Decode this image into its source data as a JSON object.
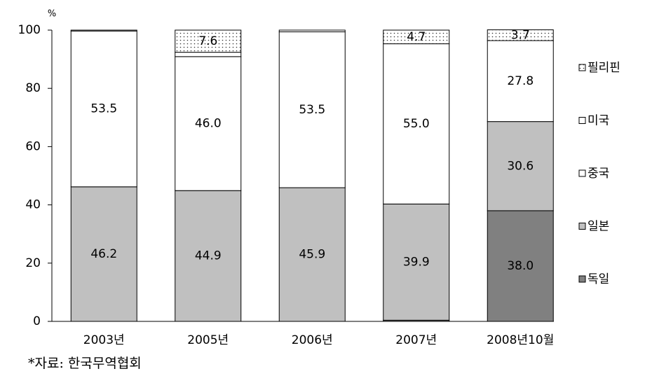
{
  "chart_data": {
    "type": "stacked_bar",
    "y_unit": "%",
    "source": "*자료: 한국무역협회",
    "categories": [
      "2003년",
      "2005년",
      "2006년",
      "2007년",
      "2008년10월"
    ],
    "series": [
      {
        "name": "독일",
        "color": "#808080",
        "values": [
          0,
          0,
          0,
          0.4,
          38.0
        ],
        "value_labels": [
          null,
          null,
          null,
          null,
          "38.0"
        ]
      },
      {
        "name": "일본",
        "color": "#c0c0c0",
        "values": [
          46.2,
          44.9,
          45.9,
          39.9,
          30.6
        ],
        "value_labels": [
          "46.2",
          "44.9",
          "45.9",
          "39.9",
          "30.6"
        ]
      },
      {
        "name": "중국",
        "color": "#ffffff",
        "values": [
          53.5,
          46.0,
          53.5,
          55.0,
          27.8
        ],
        "value_labels": [
          "53.5",
          "46.0",
          "53.5",
          "55.0",
          "27.8"
        ]
      },
      {
        "name": "미국",
        "color": "#ffffff",
        "values": [
          0,
          1.5,
          0,
          0,
          0
        ],
        "value_labels": [
          null,
          null,
          null,
          null,
          null
        ]
      },
      {
        "name": "필리핀",
        "color": "dots",
        "values": [
          0.3,
          7.6,
          0.6,
          4.7,
          3.7
        ],
        "value_labels": [
          null,
          "7.6",
          null,
          "4.7",
          "3.7"
        ]
      }
    ],
    "ylim": [
      0,
      100
    ],
    "yticks": [
      0,
      20,
      40,
      60,
      80,
      100
    ]
  }
}
